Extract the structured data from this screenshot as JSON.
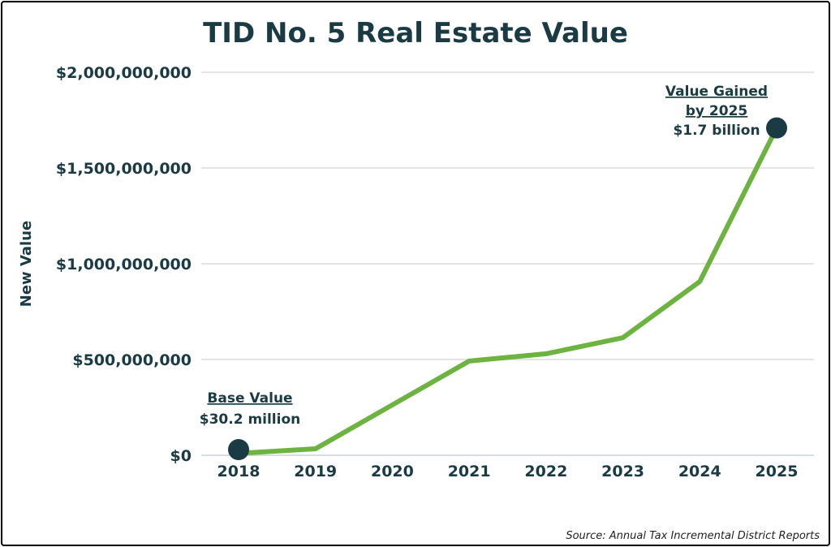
{
  "chart_data": {
    "type": "line",
    "title": "TID No. 5 Real Estate Value",
    "ylabel": "New Value",
    "xlabel": "",
    "categories": [
      "2018",
      "2019",
      "2020",
      "2021",
      "2022",
      "2023",
      "2024",
      "2025"
    ],
    "values": [
      10000000,
      34000000,
      263000000,
      492000000,
      530000000,
      614000000,
      907000000,
      1709000000
    ],
    "ylim": [
      0,
      2000000000
    ],
    "yticks": [
      0,
      500000000,
      1000000000,
      1500000000,
      2000000000
    ],
    "ytick_labels": [
      "$0",
      "$500,000,000",
      "$1,000,000,000",
      "$1,500,000,000",
      "$2,000,000,000"
    ],
    "grid": true,
    "line_color": "#6db33f",
    "marker_color": "#1a3a44",
    "annotations": [
      {
        "title": "Base Value",
        "value": "$30.2 million"
      },
      {
        "title_line1": "Value Gained",
        "title_line2": "by 2025",
        "value": "$1.7 billion"
      }
    ],
    "source": "Source: Annual Tax Incremental District Reports"
  }
}
